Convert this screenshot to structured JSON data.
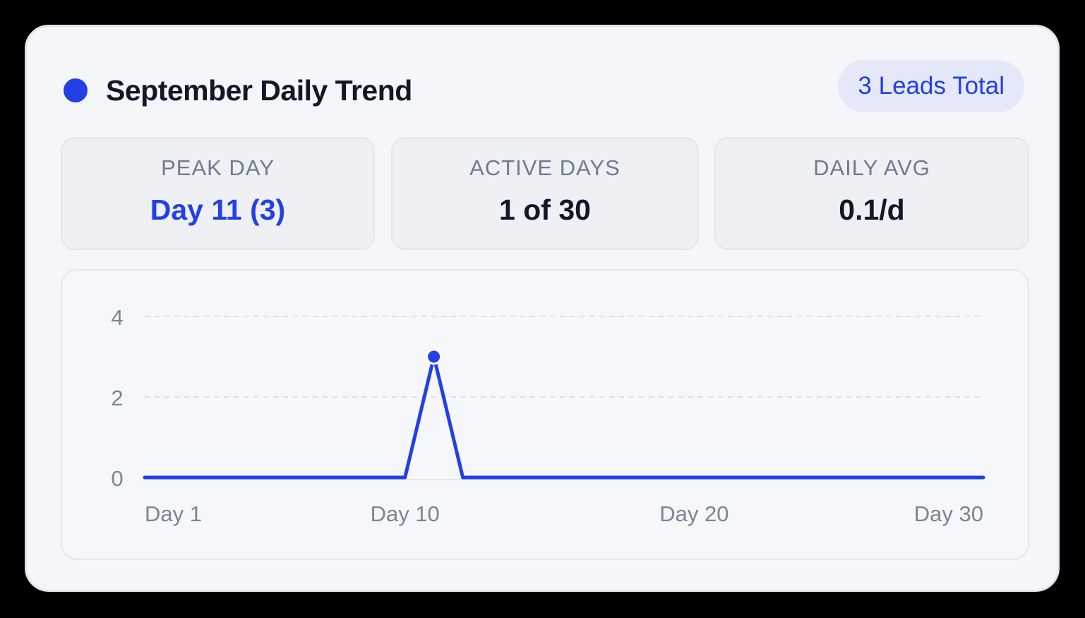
{
  "card": {
    "title": "September Daily Trend",
    "badge": "3 Leads Total"
  },
  "stats": [
    {
      "label": "PEAK DAY",
      "value": "Day 11 (3)"
    },
    {
      "label": "ACTIVE DAYS",
      "value": "1 of 30"
    },
    {
      "label": "DAILY AVG",
      "value": "0.1/d"
    }
  ],
  "colors": {
    "accent": "#2340e6",
    "background": "#f5f6f9",
    "muted_text": "#6f7b8f"
  },
  "icons": {
    "header": "status-dot-icon"
  },
  "chart_data": {
    "type": "line",
    "x": [
      1,
      2,
      3,
      4,
      5,
      6,
      7,
      8,
      9,
      10,
      11,
      12,
      13,
      14,
      15,
      16,
      17,
      18,
      19,
      20,
      21,
      22,
      23,
      24,
      25,
      26,
      27,
      28,
      29,
      30
    ],
    "series": [
      {
        "values": [
          0,
          0,
          0,
          0,
          0,
          0,
          0,
          0,
          0,
          0,
          3,
          0,
          0,
          0,
          0,
          0,
          0,
          0,
          0,
          0,
          0,
          0,
          0,
          0,
          0,
          0,
          0,
          0,
          0,
          0
        ],
        "color": "#2340e6"
      }
    ],
    "highlight_point": {
      "x": 11,
      "y": 3
    },
    "x_ticks": [
      1,
      10,
      20,
      30
    ],
    "x_tick_labels": [
      "Day  1",
      "Day 10",
      "Day 20",
      "Day 30"
    ],
    "y_ticks": [
      0,
      2,
      4
    ],
    "y_tick_labels": [
      "0",
      "2",
      "4"
    ],
    "xlim": [
      1,
      30
    ],
    "ylim": [
      0,
      4
    ],
    "title": "",
    "xlabel": "",
    "ylabel": "",
    "grid": true,
    "grid_style": "dashed horizontal",
    "legend": "none"
  }
}
